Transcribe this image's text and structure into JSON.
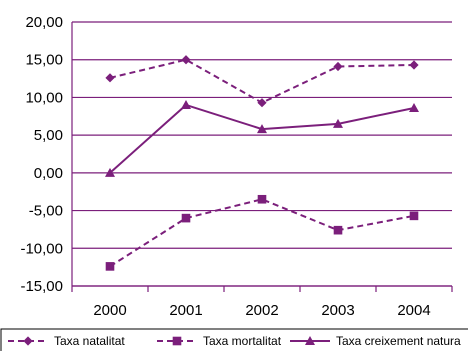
{
  "chart_data": {
    "type": "line",
    "categories": [
      "2000",
      "2001",
      "2002",
      "2003",
      "2004"
    ],
    "ylim": [
      -15,
      20
    ],
    "yticks": [
      "20,00",
      "15,00",
      "10,00",
      "5,00",
      "0,00",
      "-5,00",
      "-10,00",
      "-15,00"
    ],
    "grid": true,
    "legend_position": "bottom",
    "series": [
      {
        "name": "Taxa natalitat",
        "values": [
          12.6,
          15.0,
          9.3,
          14.1,
          14.3
        ],
        "line_style": "dashed",
        "marker": "diamond",
        "color": "#7b1f7b"
      },
      {
        "name": "Taxa mortalitat",
        "values": [
          -12.4,
          -6.0,
          -3.5,
          -7.6,
          -5.7
        ],
        "line_style": "dashed",
        "marker": "square",
        "color": "#7b1f7b"
      },
      {
        "name": "Taxa creixement natura",
        "values": [
          0.0,
          9.0,
          5.8,
          6.5,
          8.6
        ],
        "line_style": "solid",
        "marker": "triangle",
        "color": "#7b1f7b"
      }
    ]
  }
}
